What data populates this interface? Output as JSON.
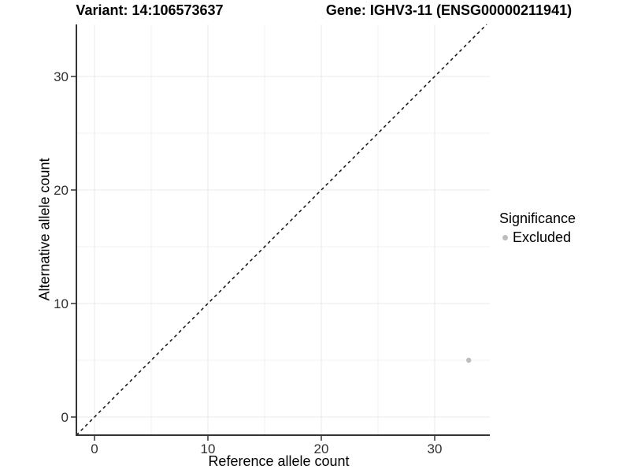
{
  "titles": {
    "variant": "Variant: 14:106573637",
    "gene": "Gene: IGHV3-11 (ENSG00000211941)"
  },
  "chart_data": {
    "type": "scatter",
    "xlabel": "Reference allele count",
    "ylabel": "Alternative allele count",
    "xlim": [
      -1.6,
      34.9
    ],
    "ylim": [
      -1.6,
      34.6
    ],
    "x_major_ticks": [
      0,
      10,
      20,
      30
    ],
    "x_minor_ticks": [
      5,
      15,
      25
    ],
    "y_major_ticks": [
      0,
      10,
      20,
      30
    ],
    "y_minor_ticks": [
      5,
      15,
      25
    ],
    "grid": true,
    "abline": {
      "slope": 1,
      "intercept": 0,
      "style": "dashed",
      "color": "#111111"
    },
    "series": [
      {
        "name": "Excluded",
        "color": "#bdbdbd",
        "points": [
          {
            "x": 33,
            "y": 5
          }
        ]
      }
    ],
    "legend": {
      "title": "Significance",
      "position": "right",
      "items": [
        {
          "label": "Excluded",
          "color": "#bdbdbd"
        }
      ]
    },
    "colors": {
      "axis_line": "#333333",
      "tick_label": "#303030",
      "grid_major": "#e8e8e8",
      "grid_minor": "#f2f2f2",
      "panel_background": "#ffffff"
    }
  }
}
